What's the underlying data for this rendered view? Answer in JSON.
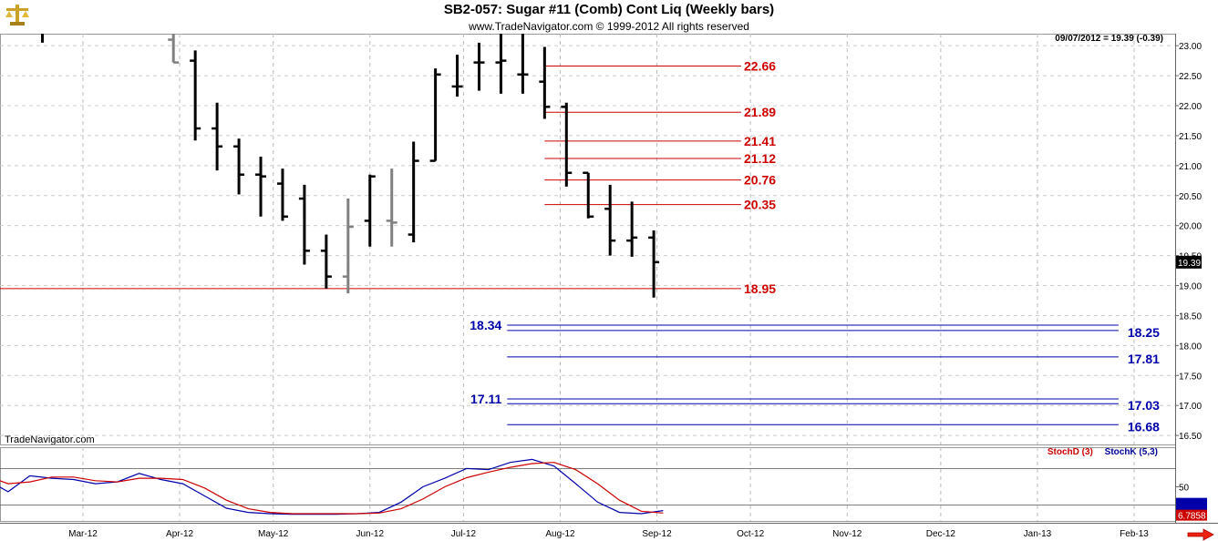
{
  "header": {
    "title": "SB2-057:  Sugar #11 (Comb) Cont Liq  (Weekly bars)",
    "copyright": "www.TradeNavigator.com © 1999-2012 All rights reserved",
    "date_readout": "09/07/2012 = 19.39 (-0.39)",
    "brand": "TradeNavigator.com"
  },
  "icons": {
    "logo": "scales-logo-icon",
    "next": "right-arrow-icon"
  },
  "colors": {
    "red_level": "#cc0000",
    "blue_level": "#0000aa",
    "stochD": "#cc0000",
    "stochK": "#0000aa",
    "bar": "#000000",
    "gray_bar": "#808080"
  },
  "chart_data": [
    {
      "type": "ohlc",
      "name": "price",
      "ylim": [
        16.35,
        23.2
      ],
      "yticks": [
        23.0,
        22.5,
        22.0,
        21.5,
        21.0,
        20.5,
        20.0,
        19.5,
        19.0,
        18.5,
        18.0,
        17.5,
        17.0,
        16.5
      ],
      "ytick_labels": [
        "23.00",
        "22.50",
        "22.00",
        "21.50",
        "21.00",
        "20.50",
        "20.00",
        "19.50",
        "19.00",
        "18.50",
        "18.00",
        "17.50",
        "17.00",
        "16.50"
      ],
      "xticks": [
        {
          "label": "Mar-12",
          "date": "2012-03-01"
        },
        {
          "label": "Apr-12",
          "date": "2012-04-01"
        },
        {
          "label": "May-12",
          "date": "2012-05-01"
        },
        {
          "label": "Jun-12",
          "date": "2012-06-01"
        },
        {
          "label": "Jul-12",
          "date": "2012-07-01"
        },
        {
          "label": "Aug-12",
          "date": "2012-08-01"
        },
        {
          "label": "Sep-12",
          "date": "2012-09-01"
        },
        {
          "label": "Oct-12",
          "date": "2012-10-01"
        },
        {
          "label": "Nov-12",
          "date": "2012-11-01"
        },
        {
          "label": "Dec-12",
          "date": "2012-12-01"
        },
        {
          "label": "Jan-13",
          "date": "2013-01-01"
        },
        {
          "label": "Feb-13",
          "date": "2013-02-01"
        }
      ],
      "last_price_label": "19.39",
      "bars": [
        {
          "date": "2012-02-17",
          "o": 23.4,
          "h": 23.6,
          "l": 23.05,
          "c": 23.2,
          "gray": false
        },
        {
          "date": "2012-03-30",
          "o": 23.1,
          "h": 23.5,
          "l": 22.72,
          "c": 22.72,
          "gray": true
        },
        {
          "date": "2012-04-06",
          "o": 22.75,
          "h": 22.92,
          "l": 21.42,
          "c": 21.62,
          "gray": false
        },
        {
          "date": "2012-04-13",
          "o": 21.62,
          "h": 22.05,
          "l": 20.92,
          "c": 21.32,
          "gray": false
        },
        {
          "date": "2012-04-20",
          "o": 21.32,
          "h": 21.45,
          "l": 20.52,
          "c": 20.85,
          "gray": false
        },
        {
          "date": "2012-04-27",
          "o": 20.85,
          "h": 21.15,
          "l": 20.15,
          "c": 20.82,
          "gray": false
        },
        {
          "date": "2012-05-04",
          "o": 20.7,
          "h": 20.95,
          "l": 20.08,
          "c": 20.15,
          "gray": false
        },
        {
          "date": "2012-05-11",
          "o": 20.45,
          "h": 20.68,
          "l": 19.35,
          "c": 19.58,
          "gray": false
        },
        {
          "date": "2012-05-18",
          "o": 19.58,
          "h": 19.85,
          "l": 18.95,
          "c": 19.15,
          "gray": false
        },
        {
          "date": "2012-05-25",
          "o": 19.15,
          "h": 20.45,
          "l": 18.87,
          "c": 19.98,
          "gray": true
        },
        {
          "date": "2012-06-01",
          "o": 20.08,
          "h": 20.85,
          "l": 19.65,
          "c": 20.82,
          "gray": false
        },
        {
          "date": "2012-06-08",
          "o": 20.08,
          "h": 20.95,
          "l": 19.65,
          "c": 20.05,
          "gray": true
        },
        {
          "date": "2012-06-15",
          "o": 19.85,
          "h": 21.4,
          "l": 19.72,
          "c": 21.08,
          "gray": false
        },
        {
          "date": "2012-06-22",
          "o": 21.08,
          "h": 22.62,
          "l": 21.08,
          "c": 22.52,
          "gray": false
        },
        {
          "date": "2012-06-29",
          "o": 22.32,
          "h": 22.85,
          "l": 22.15,
          "c": 22.32,
          "gray": false
        },
        {
          "date": "2012-07-06",
          "o": 22.72,
          "h": 23.05,
          "l": 22.25,
          "c": 22.72,
          "gray": false
        },
        {
          "date": "2012-07-13",
          "o": 22.72,
          "h": 23.25,
          "l": 22.2,
          "c": 22.75,
          "gray": false
        },
        {
          "date": "2012-07-20",
          "o": 22.52,
          "h": 23.3,
          "l": 22.2,
          "c": 22.52,
          "gray": false
        },
        {
          "date": "2012-07-27",
          "o": 22.4,
          "h": 22.98,
          "l": 21.78,
          "c": 21.98,
          "gray": false
        },
        {
          "date": "2012-08-03",
          "o": 21.98,
          "h": 22.05,
          "l": 20.65,
          "c": 20.88,
          "gray": false
        },
        {
          "date": "2012-08-10",
          "o": 20.88,
          "h": 20.88,
          "l": 20.12,
          "c": 20.15,
          "gray": false
        },
        {
          "date": "2012-08-17",
          "o": 20.28,
          "h": 20.68,
          "l": 19.5,
          "c": 19.75,
          "gray": false
        },
        {
          "date": "2012-08-24",
          "o": 19.75,
          "h": 20.4,
          "l": 19.48,
          "c": 19.8,
          "gray": false
        },
        {
          "date": "2012-08-31",
          "o": 19.8,
          "h": 19.92,
          "l": 18.8,
          "c": 19.39,
          "gray": false
        }
      ],
      "red_levels": [
        {
          "value": 22.66,
          "label": "22.66",
          "from": "2012-07-27",
          "to": "2012-09-28"
        },
        {
          "value": 21.89,
          "label": "21.89",
          "from": "2012-07-27",
          "to": "2012-09-28"
        },
        {
          "value": 21.41,
          "label": "21.41",
          "from": "2012-07-27",
          "to": "2012-09-28"
        },
        {
          "value": 21.12,
          "label": "21.12",
          "from": "2012-07-27",
          "to": "2012-09-28"
        },
        {
          "value": 20.76,
          "label": "20.76",
          "from": "2012-07-27",
          "to": "2012-09-28"
        },
        {
          "value": 20.35,
          "label": "20.35",
          "from": "2012-07-27",
          "to": "2012-09-28"
        },
        {
          "value": 18.95,
          "label": "18.95",
          "from": "2012-01-30",
          "to": "2012-09-28"
        }
      ],
      "blue_levels": [
        {
          "value": 18.34,
          "label": "18.34",
          "label_side": "left"
        },
        {
          "value": 18.25,
          "label": "18.25",
          "label_side": "right"
        },
        {
          "value": 17.81,
          "label": "17.81",
          "label_side": "right"
        },
        {
          "value": 17.11,
          "label": "17.11",
          "label_side": "left"
        },
        {
          "value": 17.03,
          "label": "17.03",
          "label_side": "right"
        },
        {
          "value": 16.68,
          "label": "16.68",
          "label_side": "right"
        }
      ],
      "blue_levels_range": {
        "from": "2012-07-15",
        "to": "2013-01-27"
      }
    },
    {
      "type": "line",
      "name": "stochastics",
      "ylim": [
        0,
        100
      ],
      "yticks": [
        50
      ],
      "ytick_labels": [
        "50"
      ],
      "legend": [
        "StochD (3)",
        "StochK (5,3)"
      ],
      "last_value_label": "6.7858",
      "series": [
        {
          "name": "StochK (5,3)",
          "color": "#0000aa",
          "x": [
            "2012-01-30",
            "2012-02-06",
            "2012-02-13",
            "2012-02-20",
            "2012-02-27",
            "2012-03-05",
            "2012-03-12",
            "2012-03-19",
            "2012-03-26",
            "2012-04-02",
            "2012-04-09",
            "2012-04-16",
            "2012-04-23",
            "2012-04-30",
            "2012-05-07",
            "2012-05-14",
            "2012-05-21",
            "2012-05-28",
            "2012-06-04",
            "2012-06-11",
            "2012-06-18",
            "2012-06-25",
            "2012-07-02",
            "2012-07-09",
            "2012-07-16",
            "2012-07-23",
            "2012-07-30",
            "2012-08-06",
            "2012-08-13",
            "2012-08-20",
            "2012-08-27",
            "2012-09-03"
          ],
          "values": [
            62,
            42,
            68,
            64,
            62,
            55,
            58,
            72,
            62,
            55,
            35,
            15,
            8,
            6,
            5,
            5,
            5,
            6,
            8,
            25,
            50,
            64,
            80,
            78,
            90,
            95,
            84,
            55,
            25,
            8,
            6,
            11
          ]
        },
        {
          "name": "StochD (3)",
          "color": "#cc0000",
          "x": [
            "2012-01-30",
            "2012-02-06",
            "2012-02-13",
            "2012-02-20",
            "2012-02-27",
            "2012-03-05",
            "2012-03-12",
            "2012-03-19",
            "2012-03-26",
            "2012-04-02",
            "2012-04-09",
            "2012-04-16",
            "2012-04-23",
            "2012-04-30",
            "2012-05-07",
            "2012-05-14",
            "2012-05-21",
            "2012-05-28",
            "2012-06-04",
            "2012-06-11",
            "2012-06-18",
            "2012-06-25",
            "2012-07-02",
            "2012-07-09",
            "2012-07-16",
            "2012-07-23",
            "2012-07-30",
            "2012-08-06",
            "2012-08-13",
            "2012-08-20",
            "2012-08-27",
            "2012-09-03"
          ],
          "values": [
            68,
            55,
            58,
            66,
            66,
            60,
            58,
            64,
            64,
            62,
            48,
            28,
            14,
            8,
            6,
            6,
            6,
            6,
            7,
            14,
            30,
            50,
            65,
            74,
            82,
            88,
            90,
            78,
            55,
            28,
            10,
            7
          ]
        }
      ],
      "ref_lines": [
        80,
        20
      ]
    }
  ]
}
